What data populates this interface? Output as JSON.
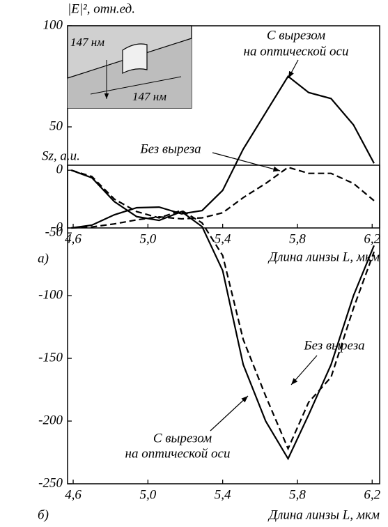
{
  "chart_data": [
    {
      "type": "line",
      "panel_label": "а)",
      "ylabel": "|E|², отн.ед.",
      "xlabel": "Длина линзы L, мкм",
      "x": [
        4.59,
        4.7,
        4.82,
        4.94,
        5.06,
        5.18,
        5.29,
        5.4,
        5.51,
        5.63,
        5.75,
        5.86,
        5.98,
        6.1,
        6.21
      ],
      "series": [
        {
          "color": "#000000",
          "dashed": false,
          "values": [
            0,
            1.4,
            6.5,
            10,
            10.3,
            7,
            8.6,
            18.6,
            39,
            57,
            75,
            67,
            64,
            51,
            32
          ]
        },
        {
          "color": "#000000",
          "dashed": true,
          "values": [
            0,
            0.5,
            2,
            4,
            5.5,
            4.5,
            5,
            7.5,
            15,
            22,
            30,
            27,
            27,
            22,
            13.5
          ]
        }
      ],
      "annotations": [
        "С вырезом",
        "на оптической оси",
        "Без выреза"
      ],
      "inset_labels": [
        "147 нм",
        "147 нм"
      ],
      "xlim": [
        4.57,
        6.24
      ],
      "ylim": [
        0,
        100
      ],
      "xticks": [
        {
          "value": 4.6,
          "label": "4,6"
        },
        {
          "value": 5.0,
          "label": "5,0"
        },
        {
          "value": 5.4,
          "label": "5,4"
        },
        {
          "value": 5.8,
          "label": "5,8"
        },
        {
          "value": 6.2,
          "label": "6,2"
        }
      ],
      "yticks": [
        0,
        50,
        100
      ]
    },
    {
      "type": "line",
      "panel_label": "б)",
      "ylabel": "Sz, a.u.",
      "xlabel": "Длина линзы L, мкм",
      "x": [
        4.59,
        4.7,
        4.82,
        4.94,
        5.06,
        5.18,
        5.29,
        5.4,
        5.51,
        5.63,
        5.75,
        5.86,
        5.98,
        6.1,
        6.21
      ],
      "series": [
        {
          "color": "#000000",
          "dashed": false,
          "values": [
            0,
            -6,
            -25,
            -37,
            -40,
            -33,
            -45,
            -80,
            -155,
            -200,
            -230,
            -195,
            -155,
            -100,
            -60
          ]
        },
        {
          "color": "#000000",
          "dashed": true,
          "values": [
            0,
            -5,
            -23,
            -33,
            -38,
            -32,
            -42,
            -68,
            -135,
            -180,
            -222,
            -185,
            -165,
            -110,
            -65
          ]
        }
      ],
      "annotations": [
        "Без выреза",
        "С вырезом",
        "на оптической оси"
      ],
      "xlim": [
        4.57,
        6.24
      ],
      "ylim": [
        -250,
        4
      ],
      "xticks": [
        {
          "value": 4.6,
          "label": "4,6"
        },
        {
          "value": 5.0,
          "label": "5,0"
        },
        {
          "value": 5.4,
          "label": "5,4"
        },
        {
          "value": 5.8,
          "label": "5,8"
        },
        {
          "value": 6.2,
          "label": "6,2"
        }
      ],
      "yticks": [
        0,
        -50,
        -100,
        -150,
        -200,
        -250
      ]
    }
  ]
}
